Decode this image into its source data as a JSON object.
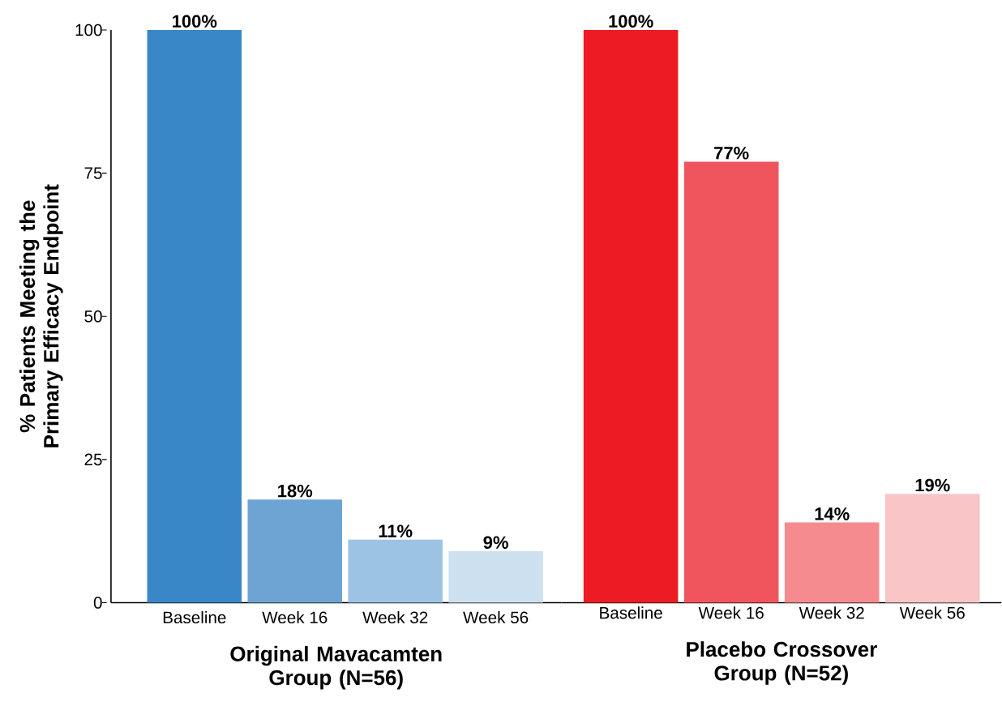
{
  "chart_data": [
    {
      "type": "bar",
      "ylabel": "% Patients Meeting the Primary Efficacy Endpoint",
      "xlabel": "Original Mavacamten Group (N=56)",
      "categories": [
        "Baseline",
        "Week 16",
        "Week 32",
        "Week 56"
      ],
      "values": [
        100,
        18,
        11,
        9
      ],
      "colors": [
        "#3a87c8",
        "#6da4d4",
        "#9dc3e4",
        "#cde0f0"
      ],
      "value_labels": [
        "100%",
        "18%",
        "11%",
        "9%"
      ],
      "ylim": [
        0,
        100
      ],
      "yticks": [
        0,
        25,
        50,
        75,
        100
      ]
    },
    {
      "type": "bar",
      "xlabel": "Placebo Crossover Group (N=52)",
      "categories": [
        "Baseline",
        "Week 16",
        "Week 32",
        "Week 56"
      ],
      "values": [
        100,
        77,
        14,
        19
      ],
      "colors": [
        "#ed1c24",
        "#f0555e",
        "#f58b8e",
        "#f9c5c7"
      ],
      "value_labels": [
        "100%",
        "77%",
        "14%",
        "19%"
      ],
      "ylim": [
        0,
        100
      ],
      "yticks": [
        0,
        25,
        50,
        75,
        100
      ],
      "tick_labels": "x"
    }
  ]
}
